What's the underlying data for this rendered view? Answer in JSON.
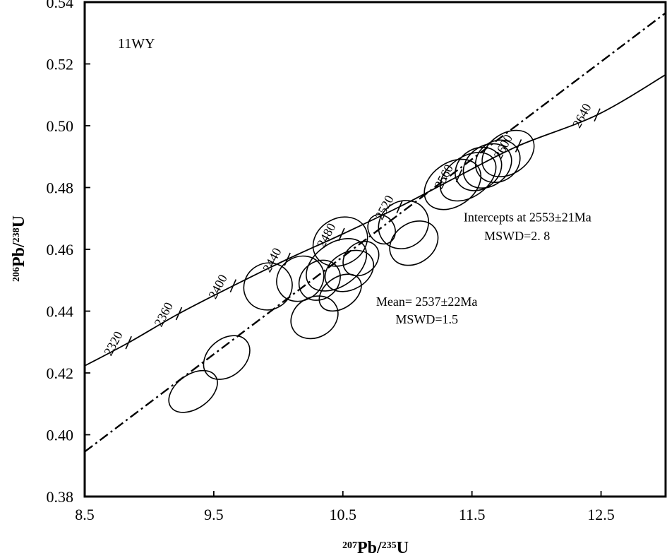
{
  "chart_data": {
    "type": "scatter",
    "sample_label": "11WY",
    "xlabel": {
      "sup1": "207",
      "el1": "Pb/",
      "sup2": "235",
      "el2": "U"
    },
    "ylabel": {
      "sup1": "206",
      "el1": "Pb/",
      "sup2": "238",
      "el2": "U"
    },
    "xlim": [
      8.5,
      13.0
    ],
    "ylim": [
      0.38,
      0.54
    ],
    "x_ticks": [
      8.5,
      9.5,
      10.5,
      11.5,
      12.5
    ],
    "x_tick_labels": [
      "8.5",
      "9.5",
      "10.5",
      "11.5",
      "12.5"
    ],
    "y_ticks": [
      0.38,
      0.4,
      0.42,
      0.44,
      0.46,
      0.48,
      0.5,
      0.52,
      0.54
    ],
    "y_tick_labels": [
      "0.38",
      "0.40",
      "0.42",
      "0.44",
      "0.46",
      "0.48",
      "0.50",
      "0.52",
      "0.54"
    ],
    "concordia_age_ticks": [
      {
        "age": "2320",
        "x": 8.84,
        "y": 0.4298
      },
      {
        "age": "2360",
        "x": 9.23,
        "y": 0.4392
      },
      {
        "age": "2400",
        "x": 9.65,
        "y": 0.4482
      },
      {
        "age": "2440",
        "x": 10.07,
        "y": 0.4568
      },
      {
        "age": "2480",
        "x": 10.49,
        "y": 0.4648
      },
      {
        "age": "2520",
        "x": 10.94,
        "y": 0.4738
      },
      {
        "age": "2560",
        "x": 11.4,
        "y": 0.4838
      },
      {
        "age": "2600",
        "x": 11.86,
        "y": 0.4935
      },
      {
        "age": "2640",
        "x": 12.47,
        "y": 0.5035
      }
    ],
    "concordia_curve": [
      {
        "x": 8.5,
        "y": 0.4223
      },
      {
        "x": 8.84,
        "y": 0.4298
      },
      {
        "x": 9.23,
        "y": 0.4392
      },
      {
        "x": 9.65,
        "y": 0.4482
      },
      {
        "x": 10.07,
        "y": 0.4568
      },
      {
        "x": 10.49,
        "y": 0.4648
      },
      {
        "x": 10.94,
        "y": 0.4738
      },
      {
        "x": 11.4,
        "y": 0.4838
      },
      {
        "x": 11.86,
        "y": 0.4935
      },
      {
        "x": 12.47,
        "y": 0.5035
      },
      {
        "x": 13.0,
        "y": 0.5165
      }
    ],
    "discordia_line": [
      {
        "x": 8.5,
        "y": 0.3945
      },
      {
        "x": 13.0,
        "y": 0.5365
      }
    ],
    "ellipses": [
      {
        "x": 9.34,
        "y": 0.414,
        "rx": 0.21,
        "ry": 0.0055,
        "tilt": 35
      },
      {
        "x": 9.6,
        "y": 0.425,
        "rx": 0.2,
        "ry": 0.006,
        "tilt": 40
      },
      {
        "x": 9.92,
        "y": 0.448,
        "rx": 0.19,
        "ry": 0.0075,
        "tilt": 30
      },
      {
        "x": 10.17,
        "y": 0.4505,
        "rx": 0.19,
        "ry": 0.007,
        "tilt": 35
      },
      {
        "x": 10.32,
        "y": 0.45,
        "rx": 0.17,
        "ry": 0.006,
        "tilt": 40
      },
      {
        "x": 10.48,
        "y": 0.4625,
        "rx": 0.22,
        "ry": 0.0075,
        "tilt": 30
      },
      {
        "x": 10.45,
        "y": 0.455,
        "rx": 0.26,
        "ry": 0.007,
        "tilt": 35
      },
      {
        "x": 10.55,
        "y": 0.453,
        "rx": 0.2,
        "ry": 0.006,
        "tilt": 30
      },
      {
        "x": 10.48,
        "y": 0.446,
        "rx": 0.18,
        "ry": 0.005,
        "tilt": 35
      },
      {
        "x": 10.28,
        "y": 0.438,
        "rx": 0.19,
        "ry": 0.0065,
        "tilt": 30
      },
      {
        "x": 10.64,
        "y": 0.457,
        "rx": 0.15,
        "ry": 0.005,
        "tilt": 40
      },
      {
        "x": 10.97,
        "y": 0.468,
        "rx": 0.2,
        "ry": 0.0075,
        "tilt": 35
      },
      {
        "x": 10.8,
        "y": 0.4665,
        "rx": 0.1,
        "ry": 0.005,
        "tilt": 35
      },
      {
        "x": 11.05,
        "y": 0.462,
        "rx": 0.2,
        "ry": 0.0065,
        "tilt": 35
      },
      {
        "x": 11.35,
        "y": 0.481,
        "rx": 0.24,
        "ry": 0.007,
        "tilt": 35
      },
      {
        "x": 11.47,
        "y": 0.4835,
        "rx": 0.24,
        "ry": 0.0065,
        "tilt": 35
      },
      {
        "x": 11.55,
        "y": 0.486,
        "rx": 0.19,
        "ry": 0.0065,
        "tilt": 35
      },
      {
        "x": 11.62,
        "y": 0.487,
        "rx": 0.2,
        "ry": 0.0065,
        "tilt": 35
      },
      {
        "x": 11.7,
        "y": 0.4885,
        "rx": 0.18,
        "ry": 0.0065,
        "tilt": 35
      },
      {
        "x": 11.78,
        "y": 0.491,
        "rx": 0.22,
        "ry": 0.0065,
        "tilt": 35
      }
    ],
    "annotations": [
      {
        "text": "Intercepts at 2553±21Ma",
        "x": 11.93,
        "y": 0.469
      },
      {
        "text": "MSWD=2. 8",
        "x": 11.85,
        "y": 0.463
      },
      {
        "text": "Mean= 2537±22Ma",
        "x": 11.15,
        "y": 0.4417
      },
      {
        "text": "MSWD=1.5",
        "x": 11.15,
        "y": 0.436
      }
    ],
    "grid": false,
    "legend": "none"
  }
}
